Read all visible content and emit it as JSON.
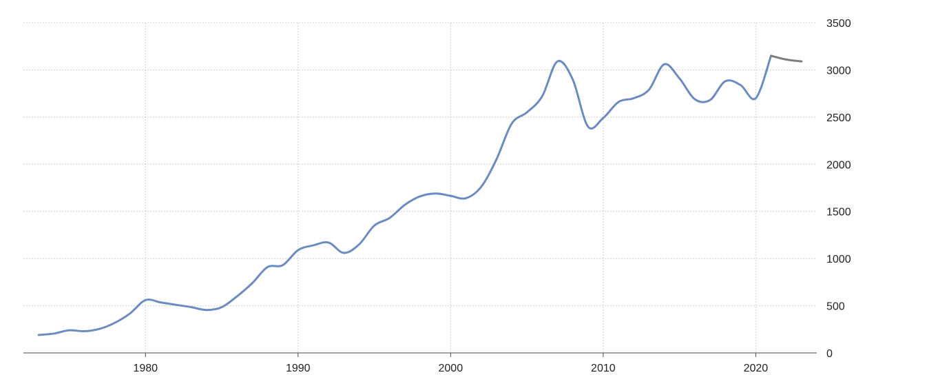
{
  "chart_data": {
    "type": "line",
    "title": "",
    "xlabel": "",
    "ylabel": "",
    "xlim": [
      1972,
      2024
    ],
    "ylim": [
      0,
      3500
    ],
    "x_ticks": [
      1980,
      1990,
      2000,
      2010,
      2020
    ],
    "y_ticks": [
      0,
      500,
      1000,
      1500,
      2000,
      2500,
      3000,
      3500
    ],
    "x_tick_labels": [
      "1980",
      "1990",
      "2000",
      "2010",
      "2020"
    ],
    "y_tick_labels": [
      "0",
      "500",
      "1000",
      "1500",
      "2000",
      "2500",
      "3000",
      "3500"
    ],
    "grid": true,
    "y_axis_position": "right",
    "series": [
      {
        "color": "#6a8cc1",
        "points": [
          [
            1973,
            190
          ],
          [
            1974,
            205
          ],
          [
            1975,
            240
          ],
          [
            1976,
            230
          ],
          [
            1977,
            255
          ],
          [
            1978,
            320
          ],
          [
            1979,
            420
          ],
          [
            1980,
            560
          ],
          [
            1981,
            535
          ],
          [
            1982,
            510
          ],
          [
            1983,
            485
          ],
          [
            1984,
            455
          ],
          [
            1985,
            485
          ],
          [
            1986,
            600
          ],
          [
            1987,
            740
          ],
          [
            1988,
            910
          ],
          [
            1989,
            930
          ],
          [
            1990,
            1090
          ],
          [
            1991,
            1140
          ],
          [
            1992,
            1170
          ],
          [
            1993,
            1060
          ],
          [
            1994,
            1150
          ],
          [
            1995,
            1350
          ],
          [
            1996,
            1430
          ],
          [
            1997,
            1570
          ],
          [
            1998,
            1660
          ],
          [
            1999,
            1690
          ],
          [
            2000,
            1665
          ],
          [
            2001,
            1640
          ],
          [
            2002,
            1760
          ],
          [
            2003,
            2050
          ],
          [
            2004,
            2430
          ],
          [
            2005,
            2550
          ],
          [
            2006,
            2720
          ],
          [
            2007,
            3090
          ],
          [
            2008,
            2900
          ],
          [
            2009,
            2400
          ],
          [
            2010,
            2490
          ],
          [
            2011,
            2660
          ],
          [
            2012,
            2700
          ],
          [
            2013,
            2790
          ],
          [
            2014,
            3060
          ],
          [
            2015,
            2910
          ],
          [
            2016,
            2690
          ],
          [
            2017,
            2680
          ],
          [
            2018,
            2880
          ],
          [
            2019,
            2840
          ],
          [
            2020,
            2700
          ],
          [
            2021,
            3150
          ]
        ]
      },
      {
        "color": "#7d7d7d",
        "points": [
          [
            2021,
            3150
          ],
          [
            2022,
            3110
          ],
          [
            2023,
            3090
          ]
        ]
      }
    ]
  }
}
